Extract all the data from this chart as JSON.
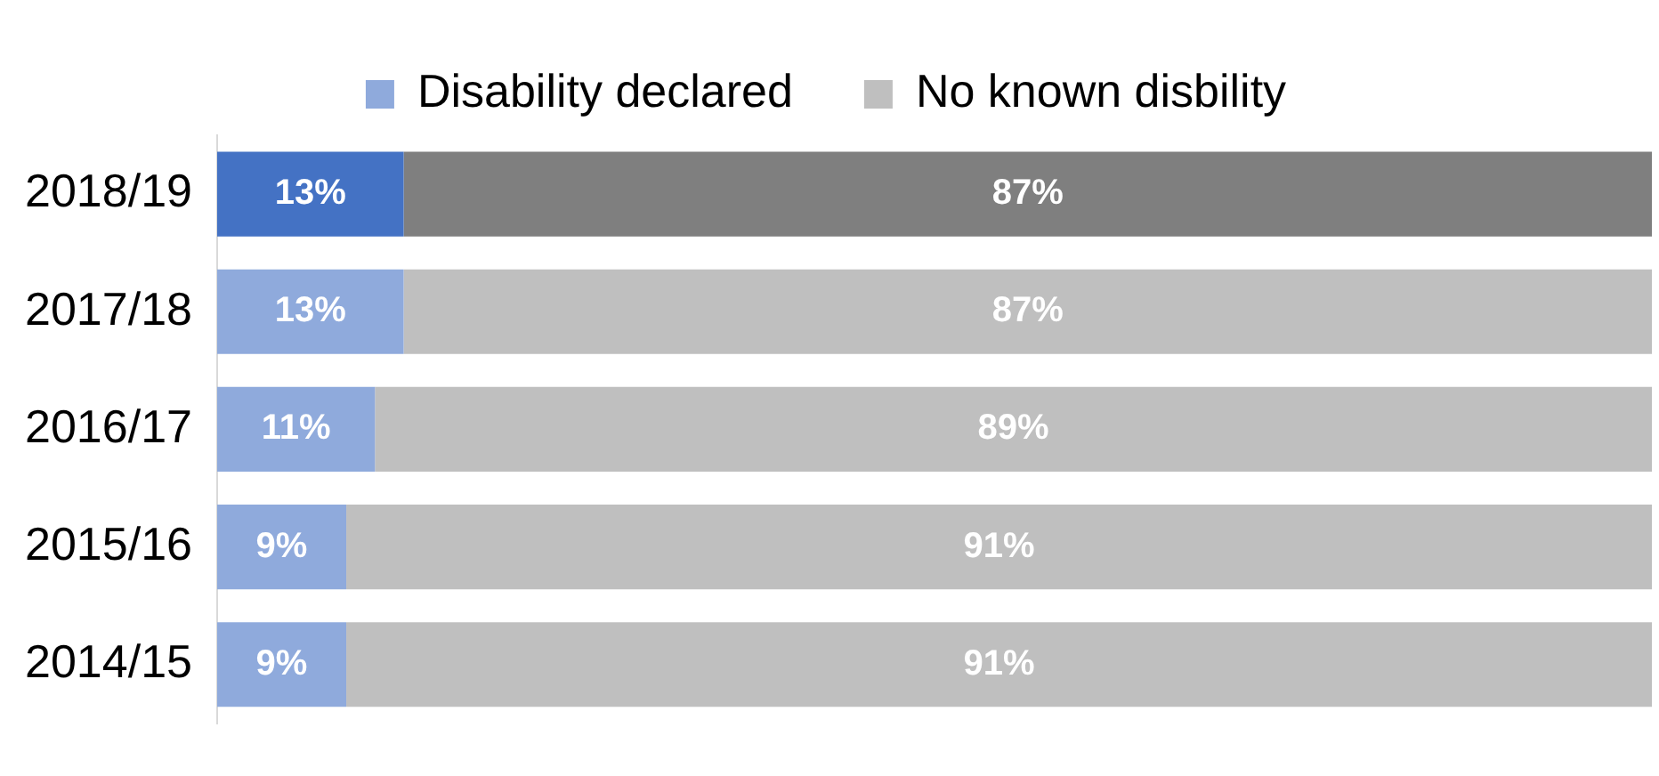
{
  "chart_data": {
    "type": "bar",
    "orientation": "horizontal",
    "stacked": true,
    "categories": [
      "2018/19",
      "2017/18",
      "2016/17",
      "2015/16",
      "2014/15"
    ],
    "series": [
      {
        "name": "Disability declared",
        "color": "#8faadc",
        "colors": [
          "#4472c4",
          "#8faadc",
          "#8faadc",
          "#8faadc",
          "#8faadc"
        ],
        "values": [
          13,
          13,
          11,
          9,
          9
        ],
        "value_labels": [
          "13%",
          "13%",
          "11%",
          "9%",
          "9%"
        ]
      },
      {
        "name": "No known disbility",
        "color": "#bfbfbf",
        "colors": [
          "#7f7f7f",
          "#bfbfbf",
          "#bfbfbf",
          "#bfbfbf",
          "#bfbfbf"
        ],
        "values": [
          87,
          87,
          89,
          91,
          91
        ],
        "value_labels": [
          "87%",
          "87%",
          "89%",
          "91%",
          "91%"
        ]
      }
    ],
    "tick_labels": "y",
    "legend": "top"
  }
}
